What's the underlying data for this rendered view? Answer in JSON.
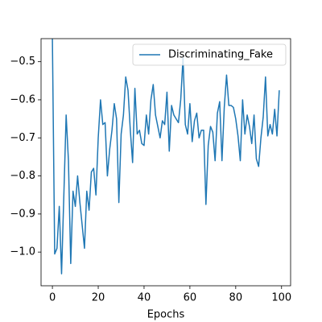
{
  "chart_data": {
    "type": "line",
    "xlabel": "Epochs",
    "x": [
      0,
      1,
      2,
      3,
      4,
      5,
      6,
      7,
      8,
      9,
      10,
      11,
      12,
      13,
      14,
      15,
      16,
      17,
      18,
      19,
      20,
      21,
      22,
      23,
      24,
      25,
      26,
      27,
      28,
      29,
      30,
      31,
      32,
      33,
      34,
      35,
      36,
      37,
      38,
      39,
      40,
      41,
      42,
      43,
      44,
      45,
      46,
      47,
      48,
      49,
      50,
      51,
      52,
      53,
      54,
      55,
      56,
      57,
      58,
      59,
      60,
      61,
      62,
      63,
      64,
      65,
      66,
      67,
      68,
      69,
      70,
      71,
      72,
      73,
      74,
      75,
      76,
      77,
      78,
      79,
      80,
      81,
      82,
      83,
      84,
      85,
      86,
      87,
      88,
      89,
      90,
      91,
      92,
      93,
      94,
      95,
      96,
      97,
      98,
      99
    ],
    "series": [
      {
        "name": "Discriminating_Fake",
        "color": "#1f77b4",
        "values": [
          -0.44,
          -1.005,
          -0.99,
          -0.88,
          -1.057,
          -0.85,
          -0.64,
          -0.76,
          -1.03,
          -0.84,
          -0.88,
          -0.8,
          -0.87,
          -0.93,
          -0.99,
          -0.84,
          -0.89,
          -0.79,
          -0.78,
          -0.85,
          -0.7,
          -0.6,
          -0.665,
          -0.66,
          -0.8,
          -0.73,
          -0.68,
          -0.61,
          -0.65,
          -0.87,
          -0.69,
          -0.64,
          -0.54,
          -0.575,
          -0.68,
          -0.765,
          -0.57,
          -0.69,
          -0.68,
          -0.715,
          -0.72,
          -0.64,
          -0.69,
          -0.6,
          -0.56,
          -0.64,
          -0.67,
          -0.7,
          -0.655,
          -0.665,
          -0.58,
          -0.735,
          -0.615,
          -0.64,
          -0.65,
          -0.66,
          -0.6,
          -0.49,
          -0.665,
          -0.69,
          -0.61,
          -0.71,
          -0.655,
          -0.635,
          -0.7,
          -0.68,
          -0.68,
          -0.875,
          -0.72,
          -0.67,
          -0.685,
          -0.76,
          -0.635,
          -0.605,
          -0.76,
          -0.62,
          -0.535,
          -0.615,
          -0.615,
          -0.62,
          -0.65,
          -0.695,
          -0.76,
          -0.6,
          -0.69,
          -0.64,
          -0.67,
          -0.715,
          -0.64,
          -0.755,
          -0.775,
          -0.7,
          -0.645,
          -0.54,
          -0.695,
          -0.665,
          -0.69,
          -0.625,
          -0.695,
          -0.575
        ]
      }
    ],
    "xlim": [
      -4.95,
      103.95
    ],
    "xticks": [
      0,
      20,
      40,
      60,
      80,
      100
    ],
    "ylim": [
      -1.0885,
      -0.4394
    ],
    "yticks": [
      {
        "value": -1.0,
        "label": "−1.0"
      },
      {
        "value": -0.9,
        "label": "−0.9"
      },
      {
        "value": -0.8,
        "label": "−0.8"
      },
      {
        "value": -0.7,
        "label": "−0.7"
      },
      {
        "value": -0.6,
        "label": "−0.6"
      },
      {
        "value": -0.5,
        "label": "−0.5"
      }
    ],
    "legend": "upper right"
  }
}
